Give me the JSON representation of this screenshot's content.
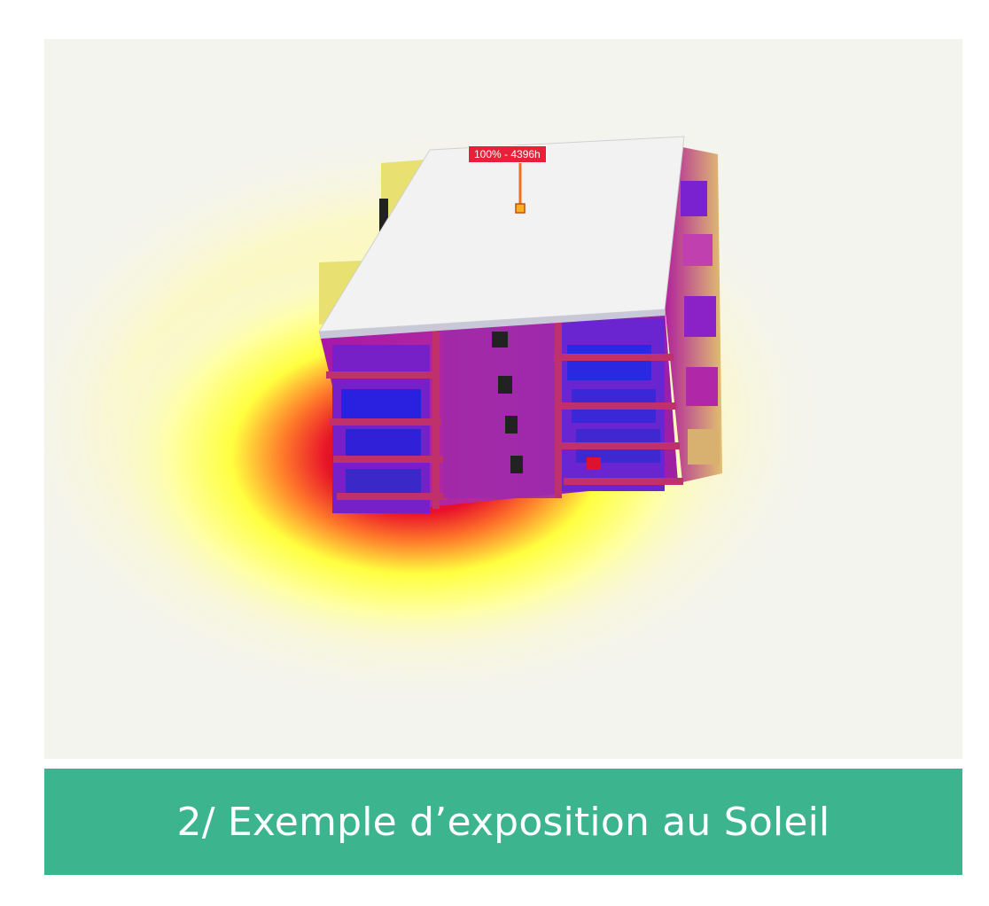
{
  "viewer": {
    "measure_label": "100% - 4396h"
  },
  "caption": {
    "text": "2/ Exemple d’exposition au Soleil",
    "background_color": "#3cb58e"
  },
  "colors": {
    "heatmap_low": "#ffff40",
    "heatmap_mid": "#ff7a2a",
    "heatmap_high": "#e8102a",
    "facade_shadow": "#7a18c8",
    "roof": "#f4f4f4"
  }
}
